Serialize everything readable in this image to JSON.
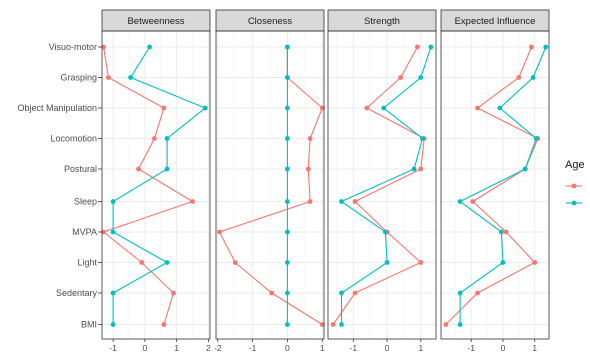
{
  "chart_data": {
    "type": "line",
    "facet_by": "centrality",
    "panels": [
      {
        "title": "Betweenness",
        "xlim": [
          -1.35,
          2.05
        ],
        "xticks": [
          "-1",
          "0",
          "1",
          "2"
        ],
        "xtick_values": [
          -1,
          0,
          1,
          2
        ],
        "series": [
          {
            "name": "",
            "color": "#F8766D",
            "values": [
              -1.3,
              -1.15,
              0.6,
              0.3,
              -0.2,
              1.5,
              -1.3,
              -0.1,
              0.9,
              0.6
            ]
          },
          {
            "name": "",
            "color": "#00BFC4",
            "values": [
              0.15,
              -0.45,
              1.9,
              0.7,
              0.7,
              -1.0,
              -1.0,
              0.7,
              -1.0,
              -1.0
            ]
          }
        ]
      },
      {
        "title": "Closeness",
        "xlim": [
          -2.05,
          1.05
        ],
        "xticks": [
          "-2",
          "-1",
          "0",
          "1"
        ],
        "xtick_values": [
          -2,
          -1,
          0,
          1
        ],
        "series": [
          {
            "name": "",
            "color": "#F8766D",
            "values": [
              0.0,
              0.0,
              1.0,
              0.65,
              0.6,
              0.65,
              -1.95,
              -1.5,
              -0.45,
              1.0
            ]
          },
          {
            "name": "",
            "color": "#00BFC4",
            "values": [
              0.0,
              0.0,
              0.0,
              0.0,
              0.0,
              0.0,
              0.0,
              0.0,
              0.0,
              0.0
            ]
          }
        ]
      },
      {
        "title": "Strength",
        "xlim": [
          -1.75,
          1.45
        ],
        "xticks": [
          "-1",
          "0",
          "1"
        ],
        "xtick_values": [
          -1,
          0,
          1
        ],
        "series": [
          {
            "name": "",
            "color": "#F8766D",
            "values": [
              0.9,
              0.4,
              -0.6,
              1.1,
              1.0,
              -0.95,
              0.0,
              1.0,
              -0.95,
              -1.6
            ]
          },
          {
            "name": "",
            "color": "#00BFC4",
            "values": [
              1.3,
              1.0,
              -0.1,
              1.05,
              0.8,
              -1.35,
              -0.05,
              0.0,
              -1.35,
              -1.35
            ]
          }
        ]
      },
      {
        "title": "Expected Influence",
        "xlim": [
          -1.95,
          1.45
        ],
        "xticks": [
          "-1",
          "0",
          "1"
        ],
        "xtick_values": [
          -1,
          0,
          1
        ],
        "series": [
          {
            "name": "",
            "color": "#F8766D",
            "values": [
              0.9,
              0.5,
              -0.8,
              1.1,
              0.7,
              -0.95,
              0.1,
              1.0,
              -0.8,
              -1.8
            ]
          },
          {
            "name": "",
            "color": "#00BFC4",
            "values": [
              1.35,
              0.95,
              -0.1,
              1.05,
              0.7,
              -1.35,
              -0.05,
              0.0,
              -1.35,
              -1.35
            ]
          }
        ]
      }
    ],
    "categories": [
      "Visuo-motor",
      "Grasping",
      "Object Manipulation",
      "Locomotion",
      "Postural",
      "Sleep",
      "MVPA",
      "Light",
      "Sedentary",
      "BMI"
    ],
    "grid": true,
    "legend": {
      "title": "Age",
      "placement": "right",
      "entries": [
        {
          "label": "",
          "color": "#F8766D"
        },
        {
          "label": "",
          "color": "#00BFC4"
        }
      ]
    }
  }
}
